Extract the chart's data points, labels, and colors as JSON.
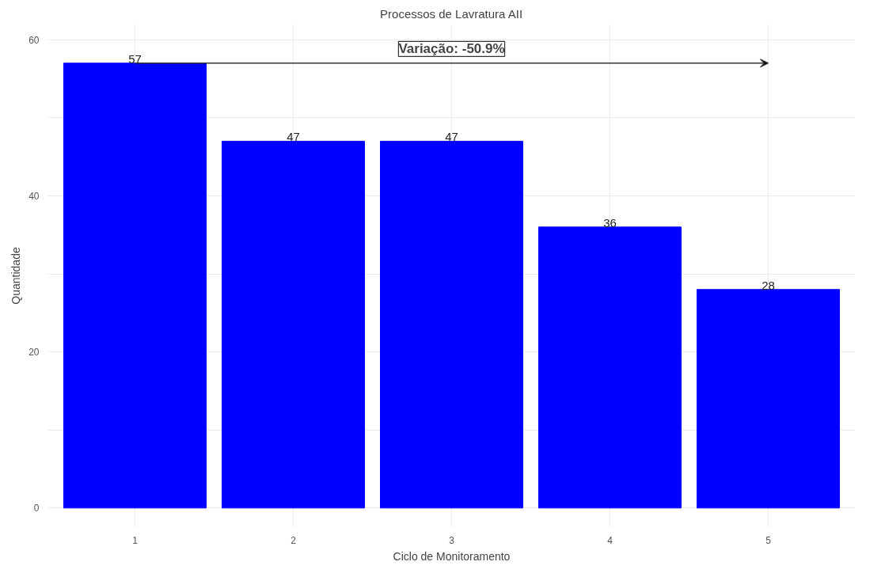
{
  "chart_data": {
    "type": "bar",
    "title": "Processos de Lavratura AII",
    "xlabel": "Ciclo de Monitoramento",
    "ylabel": "Quantidade",
    "categories": [
      "1",
      "2",
      "3",
      "4",
      "5"
    ],
    "values": [
      57,
      47,
      47,
      36,
      28
    ],
    "color": "#0000ff",
    "data_labels": true,
    "ylim": [
      -2.5,
      62
    ],
    "yticks": [
      0,
      {
        "value": 10,
        "label": null
      },
      20,
      {
        "value": 30,
        "label": null
      },
      40,
      {
        "value": 50,
        "label": null
      },
      60
    ],
    "grid": true,
    "annotations": [
      "Variação: -50.9%"
    ]
  }
}
